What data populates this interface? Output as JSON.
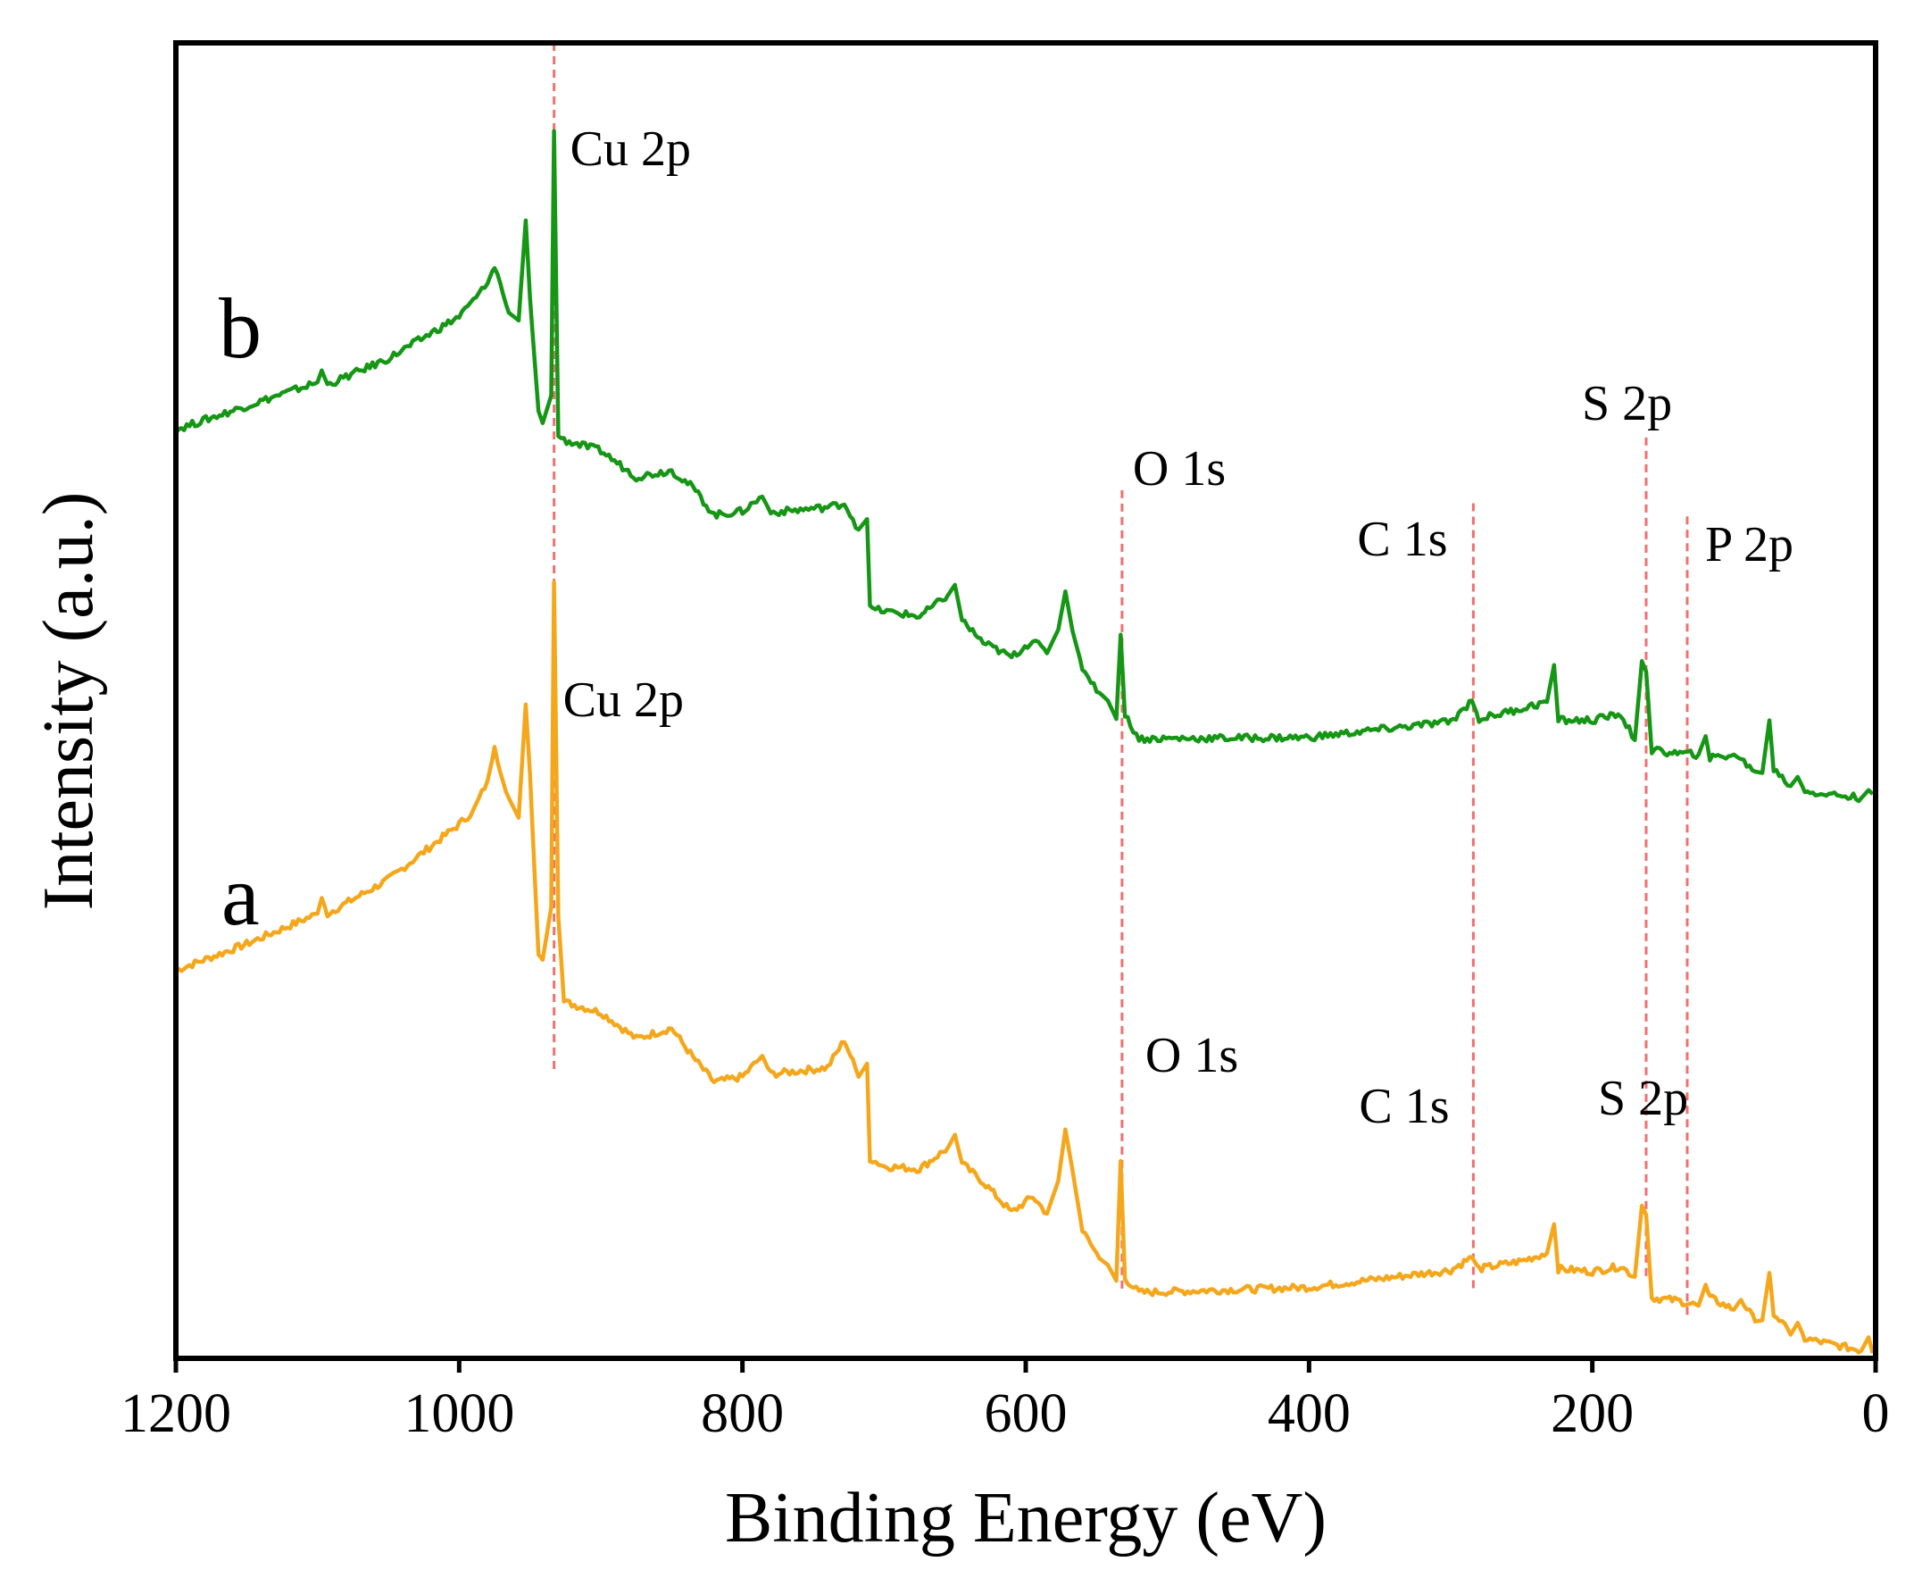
{
  "chart_data": {
    "type": "line",
    "title": "",
    "xlabel": "Binding Energy (eV)",
    "ylabel": "Intensity (a.u.)",
    "xlim": [
      1200,
      0
    ],
    "ylim": [
      0,
      100
    ],
    "x_ticks": [
      1200,
      1000,
      800,
      600,
      400,
      200,
      0
    ],
    "x_tick_labels": [
      "1200",
      "1000",
      "800",
      "600",
      "400",
      "200",
      "0"
    ],
    "grid": false,
    "series": [
      {
        "name": "a",
        "color": "#f5a71c",
        "points": [
          [
            1200,
            29.5
          ],
          [
            1150,
            31.5
          ],
          [
            1100,
            33.8
          ],
          [
            1097,
            35.0
          ],
          [
            1093,
            33.8
          ],
          [
            1050,
            36.4
          ],
          [
            1000,
            40.6
          ],
          [
            990,
            41.6
          ],
          [
            980,
            43.9
          ],
          [
            975,
            46.3
          ],
          [
            965,
            42.6
          ],
          [
            958,
            41.1
          ],
          [
            953,
            49.7
          ],
          [
            950,
            44.4
          ],
          [
            944,
            30.7
          ],
          [
            941,
            30.3
          ],
          [
            935,
            34.3
          ],
          [
            933,
            59.0
          ],
          [
            930,
            33.6
          ],
          [
            926,
            27.1
          ],
          [
            900,
            26.3
          ],
          [
            875,
            24.3
          ],
          [
            850,
            25.1
          ],
          [
            835,
            22.9
          ],
          [
            820,
            21.0
          ],
          [
            800,
            21.4
          ],
          [
            786,
            23.0
          ],
          [
            780,
            21.6
          ],
          [
            740,
            22.1
          ],
          [
            728,
            24.2
          ],
          [
            718,
            21.4
          ],
          [
            712,
            22.4
          ],
          [
            710,
            15.2
          ],
          [
            700,
            14.6
          ],
          [
            675,
            14.4
          ],
          [
            655,
            16.0
          ],
          [
            650,
            17.0
          ],
          [
            645,
            14.8
          ],
          [
            630,
            13.4
          ],
          [
            610,
            11.1
          ],
          [
            595,
            12.3
          ],
          [
            585,
            11.0
          ],
          [
            577,
            13.5
          ],
          [
            572,
            17.4
          ],
          [
            567,
            14.3
          ],
          [
            560,
            9.7
          ],
          [
            548,
            7.6
          ],
          [
            542,
            7.1
          ],
          [
            536,
            5.9
          ],
          [
            533,
            15.0
          ],
          [
            530,
            6.1
          ],
          [
            520,
            5.0
          ],
          [
            400,
            5.4
          ],
          [
            300,
            6.7
          ],
          [
            285,
            7.7
          ],
          [
            280,
            6.8
          ],
          [
            250,
            7.4
          ],
          [
            232,
            8.0
          ],
          [
            227,
            10.2
          ],
          [
            224,
            6.8
          ],
          [
            200,
            6.6
          ],
          [
            180,
            7.0
          ],
          [
            170,
            6.2
          ],
          [
            165,
            11.6
          ],
          [
            162,
            10.9
          ],
          [
            158,
            4.6
          ],
          [
            140,
            4.4
          ],
          [
            125,
            4.0
          ],
          [
            120,
            5.6
          ],
          [
            117,
            4.6
          ],
          [
            100,
            3.7
          ],
          [
            95,
            4.5
          ],
          [
            85,
            2.8
          ],
          [
            80,
            2.9
          ],
          [
            75,
            6.5
          ],
          [
            72,
            3.5
          ],
          [
            60,
            1.8
          ],
          [
            55,
            2.7
          ],
          [
            50,
            1.5
          ],
          [
            10,
            0.6
          ],
          [
            5,
            1.6
          ],
          [
            2,
            0.4
          ]
        ]
      },
      {
        "name": "b",
        "color": "#159615",
        "points": [
          [
            1200,
            70.6
          ],
          [
            1150,
            72.4
          ],
          [
            1100,
            74.2
          ],
          [
            1097,
            75.1
          ],
          [
            1093,
            74.0
          ],
          [
            1050,
            76.0
          ],
          [
            1000,
            79.2
          ],
          [
            990,
            80.4
          ],
          [
            980,
            81.7
          ],
          [
            975,
            83.1
          ],
          [
            965,
            79.5
          ],
          [
            958,
            78.9
          ],
          [
            953,
            86.5
          ],
          [
            950,
            80.6
          ],
          [
            944,
            72.0
          ],
          [
            941,
            71.1
          ],
          [
            935,
            73.2
          ],
          [
            933,
            93.3
          ],
          [
            930,
            70.1
          ],
          [
            926,
            69.8
          ],
          [
            900,
            69.0
          ],
          [
            875,
            67.0
          ],
          [
            850,
            67.5
          ],
          [
            835,
            66.2
          ],
          [
            820,
            64.1
          ],
          [
            800,
            64.4
          ],
          [
            786,
            65.5
          ],
          [
            780,
            64.3
          ],
          [
            740,
            64.7
          ],
          [
            728,
            65.0
          ],
          [
            718,
            63.0
          ],
          [
            712,
            63.8
          ],
          [
            710,
            57.0
          ],
          [
            700,
            56.8
          ],
          [
            675,
            56.4
          ],
          [
            655,
            58.0
          ],
          [
            650,
            58.8
          ],
          [
            645,
            56.1
          ],
          [
            630,
            54.4
          ],
          [
            610,
            53.3
          ],
          [
            595,
            54.6
          ],
          [
            585,
            53.6
          ],
          [
            577,
            55.4
          ],
          [
            572,
            58.3
          ],
          [
            567,
            55.3
          ],
          [
            560,
            52.5
          ],
          [
            548,
            50.6
          ],
          [
            542,
            50.0
          ],
          [
            536,
            48.6
          ],
          [
            533,
            55.0
          ],
          [
            530,
            48.9
          ],
          [
            520,
            47.1
          ],
          [
            400,
            47.2
          ],
          [
            300,
            48.4
          ],
          [
            285,
            50.0
          ],
          [
            280,
            48.6
          ],
          [
            250,
            49.4
          ],
          [
            232,
            49.9
          ],
          [
            227,
            52.7
          ],
          [
            224,
            48.5
          ],
          [
            200,
            48.5
          ],
          [
            180,
            49.0
          ],
          [
            170,
            47.0
          ],
          [
            165,
            53.0
          ],
          [
            162,
            52.2
          ],
          [
            158,
            46.2
          ],
          [
            140,
            46.0
          ],
          [
            125,
            45.9
          ],
          [
            120,
            47.3
          ],
          [
            117,
            45.6
          ],
          [
            100,
            45.9
          ],
          [
            95,
            45.5
          ],
          [
            85,
            44.6
          ],
          [
            80,
            44.5
          ],
          [
            75,
            48.5
          ],
          [
            72,
            44.8
          ],
          [
            60,
            43.5
          ],
          [
            55,
            44.2
          ],
          [
            50,
            43.1
          ],
          [
            10,
            42.6
          ],
          [
            5,
            43.2
          ],
          [
            2,
            42.9
          ]
        ]
      }
    ],
    "reference_lines": [
      {
        "x": 933,
        "y_range": [
          22,
          100
        ]
      },
      {
        "x": 532,
        "y_range": [
          5,
          66
        ]
      },
      {
        "x": 284,
        "y_range": [
          5,
          65
        ]
      },
      {
        "x": 162,
        "y_range": [
          6,
          70
        ]
      },
      {
        "x": 133,
        "y_range": [
          3,
          64
        ]
      }
    ],
    "annotations": [
      {
        "series": "b",
        "label": "Cu 2p",
        "x": 933
      },
      {
        "series": "b",
        "label": "O 1s",
        "x": 532
      },
      {
        "series": "b",
        "label": "C 1s",
        "x": 284
      },
      {
        "series": "b",
        "label": "S 2p",
        "x": 162
      },
      {
        "series": "b",
        "label": "P 2p",
        "x": 133
      },
      {
        "series": "a",
        "label": "Cu 2p",
        "x": 933
      },
      {
        "series": "a",
        "label": "O 1s",
        "x": 532
      },
      {
        "series": "a",
        "label": "C 1s",
        "x": 284
      },
      {
        "series": "a",
        "label": "S 2p",
        "x": 162
      }
    ],
    "reference_line_color": "#f07070"
  }
}
